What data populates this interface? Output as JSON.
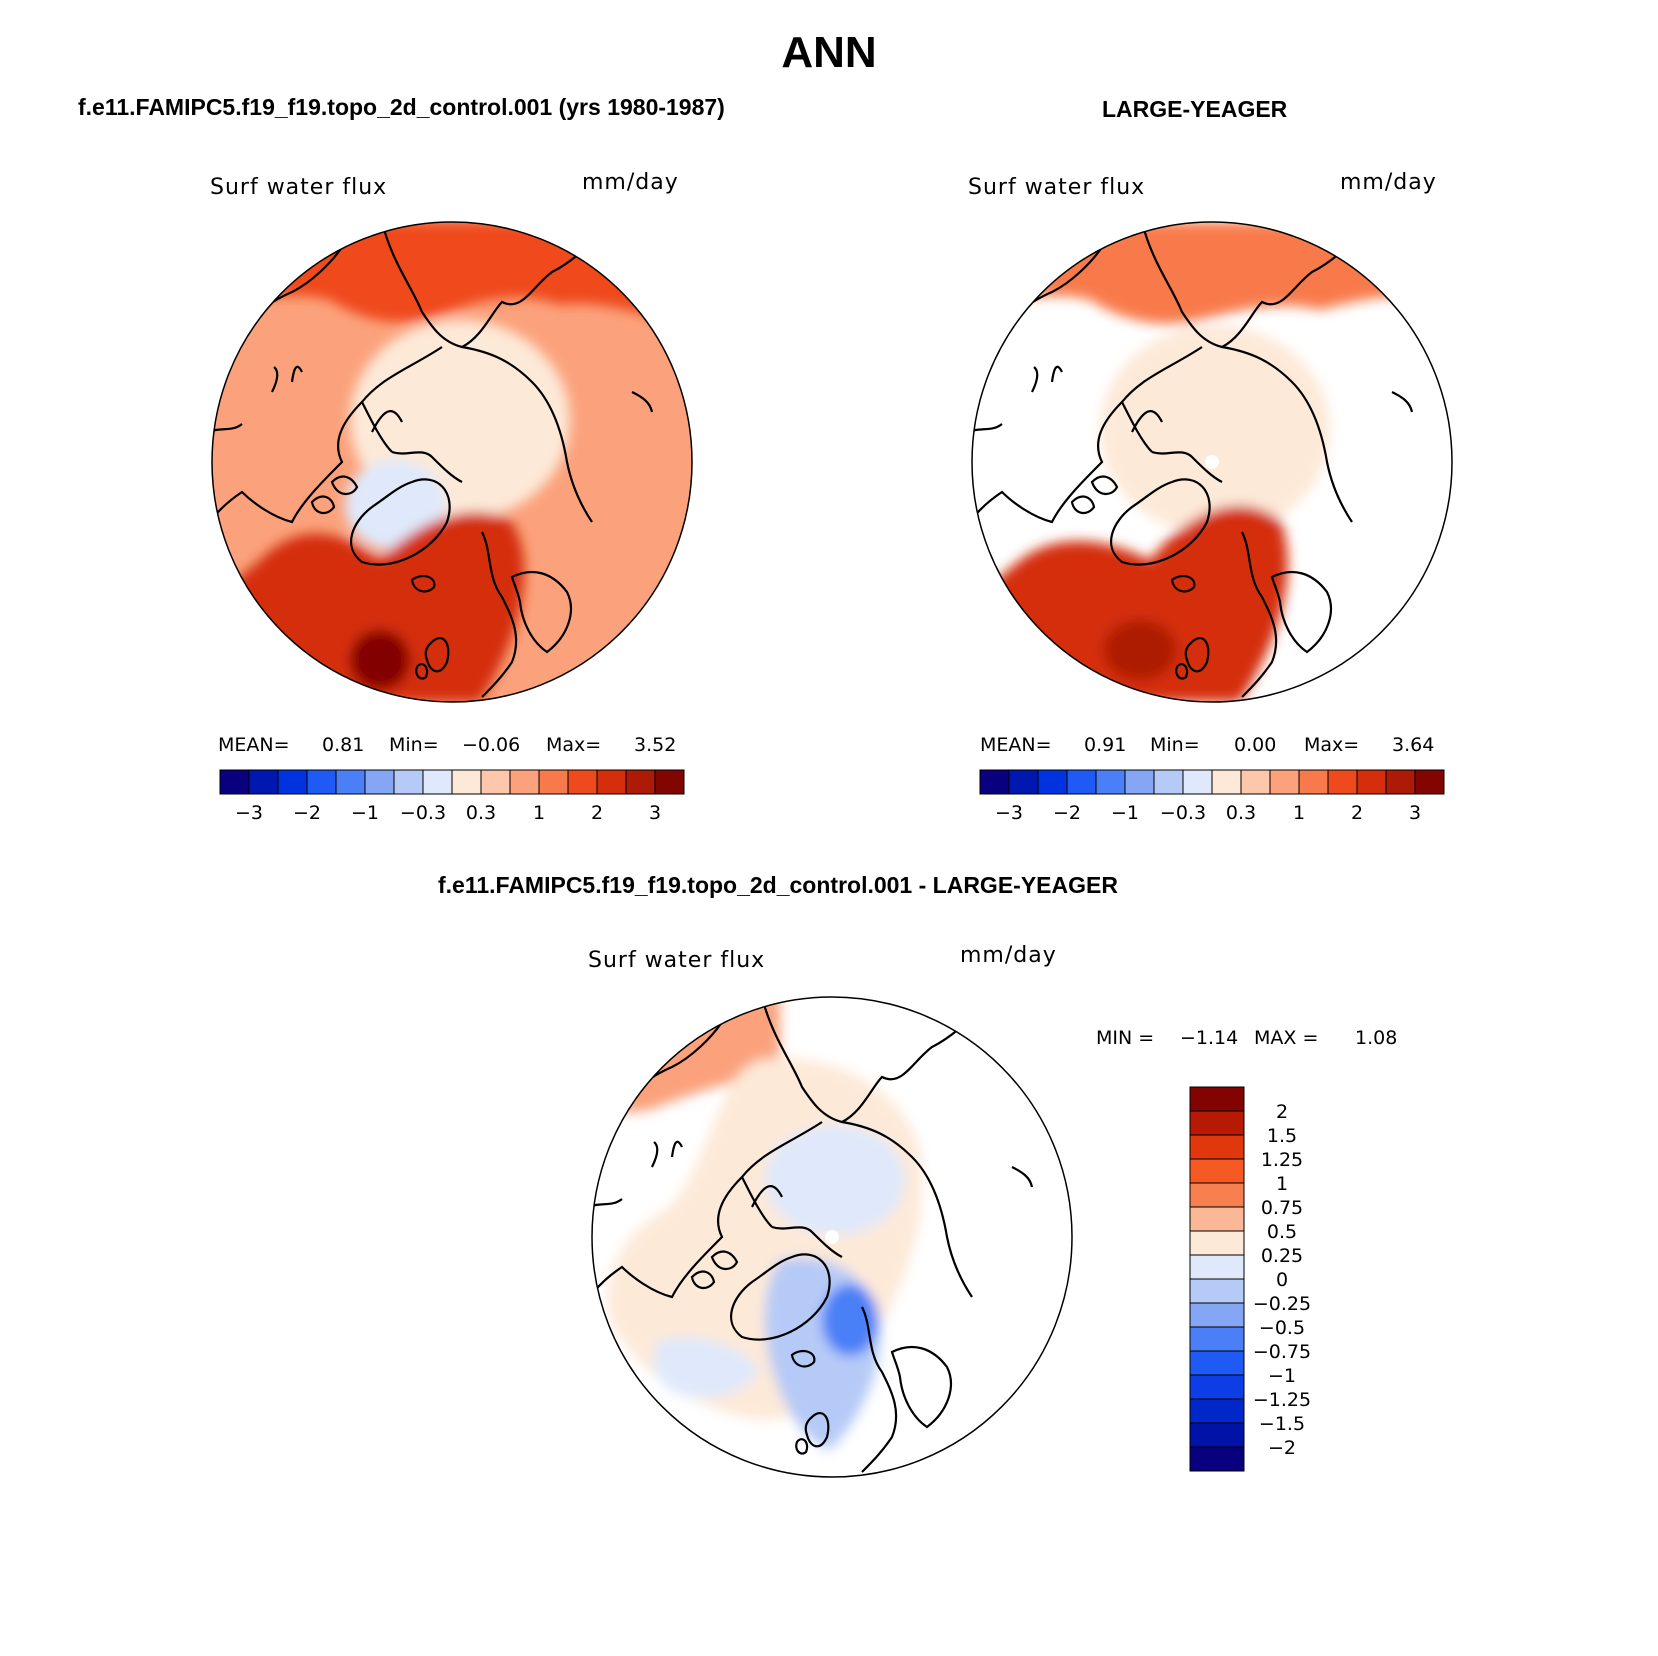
{
  "figure": {
    "title": "ANN"
  },
  "panels": [
    {
      "title": "f.e11.FAMIPC5.f19_f19.topo_2d_control.001 (yrs 1980-1987)",
      "variable": "Surf water flux",
      "units": "mm/day",
      "stats": {
        "mean_label": "MEAN=",
        "mean": "0.81",
        "min_label": "Min=",
        "min": "−0.06",
        "max_label": "Max=",
        "max": "3.52"
      }
    },
    {
      "title": "LARGE-YEAGER",
      "variable": "Surf water flux",
      "units": "mm/day",
      "stats": {
        "mean_label": "MEAN=",
        "mean": "0.91",
        "min_label": "Min=",
        "min": "0.00",
        "max_label": "Max=",
        "max": "3.64"
      }
    },
    {
      "title": "f.e11.FAMIPC5.f19_f19.topo_2d_control.001 - LARGE-YEAGER",
      "variable": "Surf water flux",
      "units": "mm/day",
      "stats": {
        "min_label": "MIN =",
        "min": "−1.14",
        "max_label": "MAX =",
        "max": "1.08"
      }
    }
  ],
  "colorbars": {
    "horizontal": {
      "colors": [
        "#08007f",
        "#0017b0",
        "#0033e0",
        "#1f5af5",
        "#4a7ff7",
        "#84a6f5",
        "#b6caf7",
        "#dfe9fb",
        "#fde9d8",
        "#fcc7ab",
        "#fba27c",
        "#f87a4c",
        "#ef4a1d",
        "#d42e0c",
        "#ad1a05",
        "#830502"
      ],
      "tick_labels": [
        "−3",
        "−2",
        "−1",
        "−0.3",
        "0.3",
        "1",
        "2",
        "3"
      ]
    },
    "vertical": {
      "colors_top_to_bottom": [
        "#820302",
        "#b71a04",
        "#e0370c",
        "#f55a24",
        "#f87f50",
        "#fbb896",
        "#fde9d8",
        "#dfe9fb",
        "#b6caf7",
        "#84a6f5",
        "#4a7ff7",
        "#1f5af5",
        "#0d3de6",
        "#0027c7",
        "#0012a8",
        "#08007f"
      ],
      "tick_labels": [
        "2",
        "1.5",
        "1.25",
        "1",
        "0.75",
        "0.5",
        "0.25",
        "0",
        "−0.25",
        "−0.5",
        "−0.75",
        "−1",
        "−1.25",
        "−1.5",
        "−2"
      ]
    }
  },
  "map_fill": {
    "panel_a": {
      "background": "#fba27c",
      "arctic": "#fde9d8",
      "north_pacific": "#ef4a1d",
      "greenland": "#dfe9fb",
      "atlantic": "#d42e0c",
      "atlantic_max": "#830502"
    },
    "panel_b": {
      "background": "#ffffff",
      "arctic": "#fde9d8",
      "north_pacific": "#f87a4c",
      "atlantic": "#d42e0c",
      "atlantic_max": "#ad1a05"
    },
    "panel_c": {
      "background": "#ffffff",
      "arctic_center": "#dfe9fb",
      "arctic": "#fde9d8",
      "north_pacific": "#fba27c",
      "atlantic": "#b6caf7",
      "atlantic_min": "#4a7ff7"
    }
  }
}
